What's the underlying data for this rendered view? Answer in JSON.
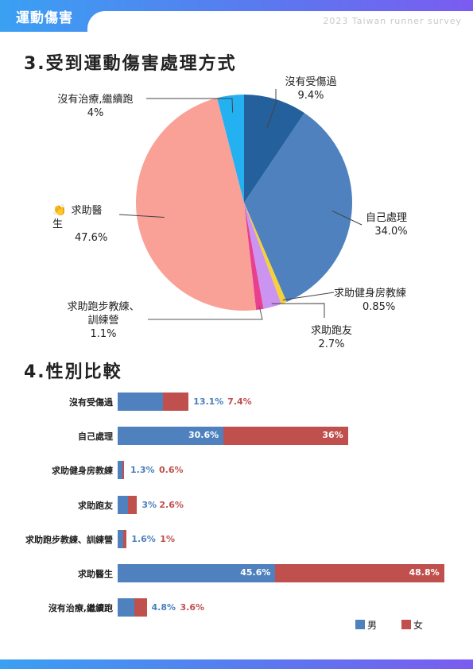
{
  "header": {
    "section": "運動傷害",
    "survey": "2023 Taiwan runner survey"
  },
  "colors": {
    "male": "#4e81bd",
    "female": "#c0504e",
    "label_male": "#4a7fbf",
    "label_female": "#c0504e"
  },
  "pie_section": {
    "title": "3.受到運動傷害處理方式",
    "highlight_icon": "clapping-hands-icon"
  },
  "bar_section": {
    "title": "4.性別比較",
    "legend": [
      "男",
      "女"
    ]
  },
  "chart_data": [
    {
      "type": "pie",
      "title": "3.受到運動傷害處理方式",
      "categories": [
        "沒有受傷過",
        "自己處理",
        "求助健身房教練",
        "求助跑友",
        "求助跑步教練、訓練營",
        "求助醫生",
        "沒有治療,繼續跑"
      ],
      "values": [
        9.4,
        34.0,
        0.85,
        2.7,
        1.1,
        47.6,
        4
      ],
      "value_labels": [
        "9.4%",
        "34.0%",
        "0.85%",
        "2.7%",
        "1.1%",
        "47.6%",
        "4%"
      ],
      "display_labels": [
        "沒有受傷過",
        "自己處理",
        "求助健身房教練",
        "求助跑友",
        "求助跑步教練、\n訓練營",
        "求助醫生",
        "沒有治療,繼續跑"
      ],
      "colors": [
        "#24609c",
        "#4e81bd",
        "#f5d13a",
        "#cb94f0",
        "#e8408f",
        "#f9a097",
        "#23b1f2"
      ]
    },
    {
      "type": "bar",
      "stacked": true,
      "orientation": "horizontal",
      "title": "4.性別比較",
      "categories": [
        "沒有受傷過",
        "自己處理",
        "求助健身房教練",
        "求助跑友",
        "求助跑步教練、訓練營",
        "求助醫生",
        "沒有治療,繼續跑"
      ],
      "series": [
        {
          "name": "男",
          "values": [
            13.1,
            30.6,
            1.3,
            3,
            1.6,
            45.6,
            4.8
          ],
          "labels": [
            "13.1%",
            "30.6%",
            "1.3%",
            "3%",
            "1.6%",
            "45.6%",
            "4.8%"
          ]
        },
        {
          "name": "女",
          "values": [
            7.4,
            36,
            0.6,
            2.6,
            1,
            48.8,
            3.6
          ],
          "labels": [
            "7.4%",
            "36%",
            "0.6%",
            "2.6%",
            "1%",
            "48.8%",
            "3.6%"
          ]
        }
      ],
      "legend_position": "bottom-right"
    }
  ]
}
